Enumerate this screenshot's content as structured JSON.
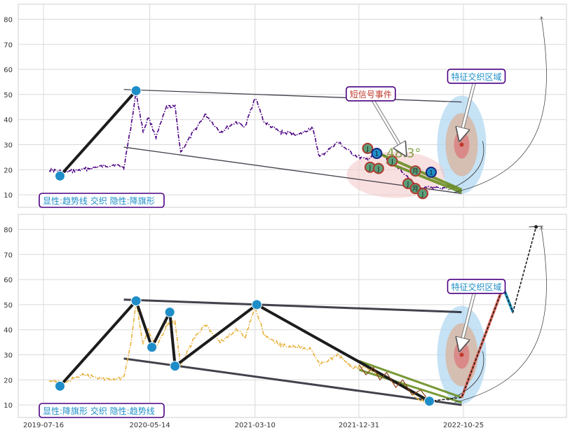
{
  "chart_data": [
    {
      "type": "line",
      "panel": "top",
      "ylim": [
        5,
        86
      ],
      "y_ticks": [
        10,
        20,
        30,
        40,
        50,
        60,
        70,
        80
      ],
      "grid": true,
      "line_color": "#4b0082",
      "price_series": [
        [
          "2019-08-01",
          20
        ],
        [
          "2019-09-15",
          19
        ],
        [
          "2019-11-01",
          20
        ],
        [
          "2019-12-15",
          21
        ],
        [
          "2020-02-01",
          22
        ],
        [
          "2020-03-01",
          21
        ],
        [
          "2020-03-20",
          36
        ],
        [
          "2020-04-05",
          51
        ],
        [
          "2020-04-25",
          35
        ],
        [
          "2020-05-10",
          41
        ],
        [
          "2020-06-01",
          33
        ],
        [
          "2020-07-01",
          45
        ],
        [
          "2020-07-25",
          45
        ],
        [
          "2020-08-10",
          27
        ],
        [
          "2020-09-20",
          36
        ],
        [
          "2020-10-20",
          42
        ],
        [
          "2020-12-01",
          35
        ],
        [
          "2021-01-15",
          39
        ],
        [
          "2021-02-10",
          37
        ],
        [
          "2021-03-10",
          49
        ],
        [
          "2021-04-05",
          39
        ],
        [
          "2021-05-20",
          35
        ],
        [
          "2021-07-15",
          34
        ],
        [
          "2021-08-20",
          37
        ],
        [
          "2021-09-10",
          25
        ],
        [
          "2021-11-01",
          31
        ],
        [
          "2021-12-15",
          26
        ],
        [
          "2022-01-20",
          24
        ],
        [
          "2022-03-01",
          27
        ],
        [
          "2022-04-15",
          22
        ],
        [
          "2022-05-15",
          18
        ],
        [
          "2022-06-20",
          12
        ],
        [
          "2022-07-25",
          13
        ],
        [
          "2022-08-25",
          12
        ],
        [
          "2022-09-15",
          14
        ],
        [
          "2022-10-01",
          13
        ]
      ],
      "trend_path": [
        [
          "2019-09-01",
          17.5
        ],
        [
          "2020-04-05",
          51.5
        ]
      ],
      "channel_lines": [
        {
          "from": [
            "2020-03-01",
            52
          ],
          "to": [
            "2022-10-20",
            47
          ]
        },
        {
          "from": [
            "2020-03-01",
            29
          ],
          "to": [
            "2022-10-20",
            10.5
          ]
        }
      ],
      "flag_lines": [
        {
          "from": [
            "2022-02-01",
            28
          ],
          "to": [
            "2022-10-20",
            12
          ]
        },
        {
          "from": [
            "2022-03-20",
            23
          ],
          "to": [
            "2022-10-20",
            11
          ]
        }
      ],
      "pivot_markers": [
        [
          "2019-09-01",
          17.5
        ],
        [
          "2020-04-05",
          51.5
        ]
      ],
      "event_markers": [
        {
          "date": "2022-01-25",
          "y": 28.5,
          "label": "J"
        },
        {
          "date": "2022-02-20",
          "y": 26.5,
          "label": "1"
        },
        {
          "date": "2022-02-01",
          "y": 21,
          "label": "J"
        },
        {
          "date": "2022-02-25",
          "y": 20.5,
          "label": "J"
        },
        {
          "date": "2022-04-05",
          "y": 23.5,
          "label": "J"
        },
        {
          "date": "2022-05-20",
          "y": 14.5,
          "label": "J"
        },
        {
          "date": "2022-06-10",
          "y": 19.5,
          "label": "月"
        },
        {
          "date": "2022-06-10",
          "y": 12.5,
          "label": "月"
        },
        {
          "date": "2022-07-01",
          "y": 10.5,
          "label": "J"
        },
        {
          "date": "2022-07-25",
          "y": 19,
          "label": "1"
        }
      ],
      "angle_label": "48.3°",
      "annotations": [
        {
          "text": "短信号事件",
          "anchor": [
            "2021-11-25",
            50
          ],
          "target": [
            "2022-05-20",
            24
          ],
          "color": "#c0392b"
        },
        {
          "text": "特征交织区域",
          "anchor": [
            "2022-09-10",
            57
          ],
          "target": [
            "2022-10-20",
            30
          ],
          "color": "#1f8ec8"
        }
      ],
      "zone_center": [
        "2022-10-20",
        30
      ],
      "legend_box": "显性:趋势线 交织 隐性:降旗形"
    },
    {
      "type": "line",
      "panel": "bottom",
      "ylim": [
        5,
        86
      ],
      "y_ticks": [
        10,
        20,
        30,
        40,
        50,
        60,
        70,
        80
      ],
      "grid": true,
      "line_color": "#e8b13a",
      "x_tick_labels": [
        "2019-07-16",
        "2020-05-14",
        "2021-03-10",
        "2021-12-31",
        "2022-10-25"
      ],
      "price_series": [
        [
          "2019-08-01",
          20
        ],
        [
          "2019-09-15",
          19
        ],
        [
          "2019-11-01",
          22
        ],
        [
          "2019-12-15",
          21
        ],
        [
          "2020-02-01",
          20
        ],
        [
          "2020-03-01",
          21
        ],
        [
          "2020-03-20",
          34
        ],
        [
          "2020-04-05",
          51
        ],
        [
          "2020-04-25",
          34
        ],
        [
          "2020-05-10",
          40
        ],
        [
          "2020-06-01",
          32
        ],
        [
          "2020-07-01",
          42
        ],
        [
          "2020-07-25",
          43
        ],
        [
          "2020-08-10",
          26
        ],
        [
          "2020-09-20",
          37
        ],
        [
          "2020-10-20",
          42
        ],
        [
          "2020-12-01",
          35
        ],
        [
          "2021-01-15",
          40
        ],
        [
          "2021-02-10",
          37
        ],
        [
          "2021-03-10",
          49
        ],
        [
          "2021-04-05",
          38
        ],
        [
          "2021-05-20",
          34
        ],
        [
          "2021-07-15",
          33
        ],
        [
          "2021-08-20",
          32
        ],
        [
          "2021-09-10",
          26
        ],
        [
          "2021-11-01",
          30
        ],
        [
          "2021-12-15",
          25
        ],
        [
          "2022-01-20",
          25
        ],
        [
          "2022-03-01",
          22
        ],
        [
          "2022-04-15",
          19
        ],
        [
          "2022-05-15",
          17
        ],
        [
          "2022-06-20",
          12
        ],
        [
          "2022-07-20",
          11
        ]
      ],
      "wave_path": [
        [
          "2019-09-01",
          17.5
        ],
        [
          "2020-04-05",
          51.5
        ],
        [
          "2020-05-20",
          33
        ],
        [
          "2020-07-10",
          47
        ],
        [
          "2020-07-25",
          25.5
        ],
        [
          "2021-03-15",
          50
        ],
        [
          "2022-07-20",
          11.5
        ]
      ],
      "channel_lines": [
        {
          "from": [
            "2020-03-01",
            52
          ],
          "to": [
            "2022-10-20",
            47
          ]
        },
        {
          "from": [
            "2020-03-01",
            28.5
          ],
          "to": [
            "2022-10-20",
            10
          ]
        }
      ],
      "flag_lines": [
        {
          "from": [
            "2022-01-01",
            27.5
          ],
          "to": [
            "2022-10-20",
            13
          ]
        },
        {
          "from": [
            "2022-01-01",
            24
          ],
          "to": [
            "2022-10-20",
            11
          ]
        }
      ],
      "projection_paths": [
        {
          "points": [
            [
              "2022-10-20",
              13
            ],
            [
              "2023-02-15",
              57
            ]
          ],
          "color": "#e06c5c"
        },
        {
          "points": [
            [
              "2023-02-15",
              57
            ],
            [
              "2023-03-15",
              47
            ]
          ],
          "color": "#2aa0cf"
        },
        {
          "points": [
            [
              "2022-07-20",
              11.5
            ],
            [
              "2022-10-20",
              13
            ],
            [
              "2023-02-15",
              57
            ],
            [
              "2023-03-15",
              47
            ],
            [
              "2023-05-20",
              81
            ]
          ],
          "color": "#1f8ec8"
        }
      ],
      "pivot_markers": [
        [
          "2019-09-01",
          17.5
        ],
        [
          "2020-04-05",
          51.5
        ],
        [
          "2020-05-20",
          33
        ],
        [
          "2020-07-10",
          47
        ],
        [
          "2020-07-25",
          25.5
        ],
        [
          "2021-03-15",
          50
        ],
        [
          "2022-07-20",
          11.5
        ]
      ],
      "annotations": [
        {
          "text": "特征交织区域",
          "anchor": [
            "2022-09-10",
            57
          ],
          "target": [
            "2022-10-20",
            30
          ],
          "color": "#1f8ec8"
        }
      ],
      "zone_center": [
        "2022-10-20",
        30
      ],
      "legend_box": "显性:降旗形 交织 隐性:趋势线"
    }
  ]
}
